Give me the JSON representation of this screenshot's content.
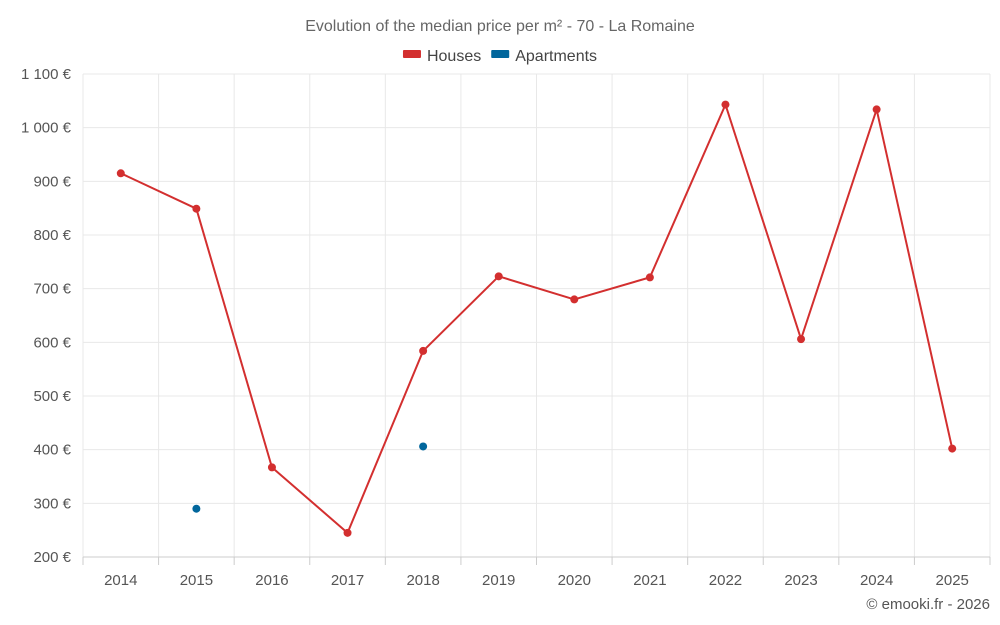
{
  "chart_data": {
    "type": "line",
    "title": "Evolution of the median price per m² - 70 - La Romaine",
    "categories": [
      "2014",
      "2015",
      "2016",
      "2017",
      "2018",
      "2019",
      "2020",
      "2021",
      "2022",
      "2023",
      "2024",
      "2025"
    ],
    "ylim": [
      200,
      1100
    ],
    "yticks": [
      200,
      300,
      400,
      500,
      600,
      700,
      800,
      900,
      1000,
      1100
    ],
    "ytick_labels": [
      "200 €",
      "300 €",
      "400 €",
      "500 €",
      "600 €",
      "700 €",
      "800 €",
      "900 €",
      "1 000 €",
      "1 100 €"
    ],
    "series": [
      {
        "name": "Houses",
        "color": "#d32f2f",
        "line": true,
        "values": [
          915,
          849,
          367,
          245,
          584,
          723,
          680,
          721,
          1043,
          606,
          1034,
          402
        ]
      },
      {
        "name": "Apartments",
        "color": "#01669c",
        "line": false,
        "values": [
          null,
          290,
          null,
          null,
          406,
          null,
          null,
          null,
          null,
          null,
          null,
          null
        ]
      }
    ],
    "legend_position": "top-center",
    "grid": true,
    "credit": "© emooki.fr - 2026"
  }
}
